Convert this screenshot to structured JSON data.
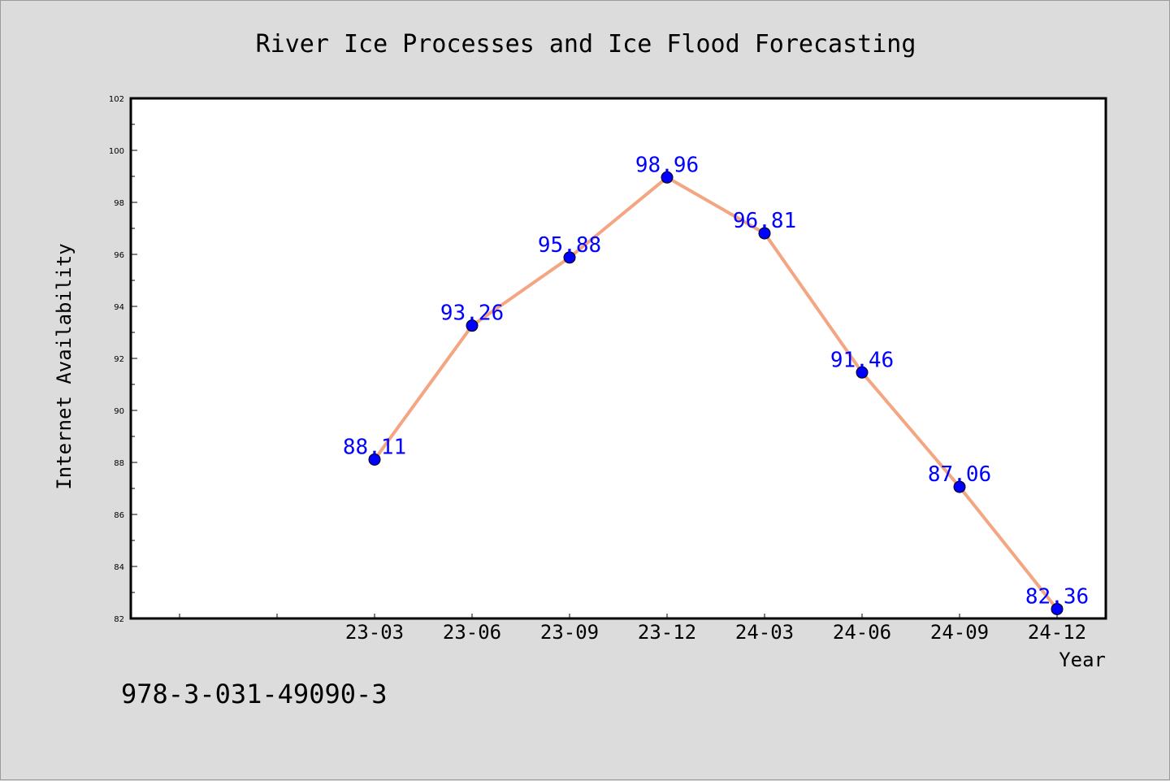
{
  "chart_data": {
    "type": "line",
    "title": "River Ice Processes and Ice Flood Forecasting",
    "xlabel": "Year",
    "ylabel": "Internet Availability",
    "categories": [
      "23-03",
      "23-06",
      "23-09",
      "23-12",
      "24-03",
      "24-06",
      "24-09",
      "24-12"
    ],
    "series": [
      {
        "values": [
          88.11,
          93.26,
          95.88,
          98.96,
          96.81,
          91.46,
          87.06,
          82.36
        ]
      }
    ],
    "data_labels": [
      "88.11",
      "93.26",
      "95.88",
      "98.96",
      "96.81",
      "91.46",
      "87.06",
      "82.36"
    ],
    "ylim": [
      82,
      102
    ],
    "yticks": [
      "82",
      "84",
      "86",
      "88",
      "90",
      "92",
      "94",
      "96",
      "98",
      "100",
      "102"
    ],
    "grid": false,
    "legend": "none",
    "colors": {
      "line": "#f4a582",
      "marker": "#0000ff",
      "data_label": "#0000ff",
      "plot_bg": "#ffffff",
      "page_bg": "#dcdcdc"
    }
  },
  "footer": {
    "isbn": "978-3-031-49090-3"
  }
}
